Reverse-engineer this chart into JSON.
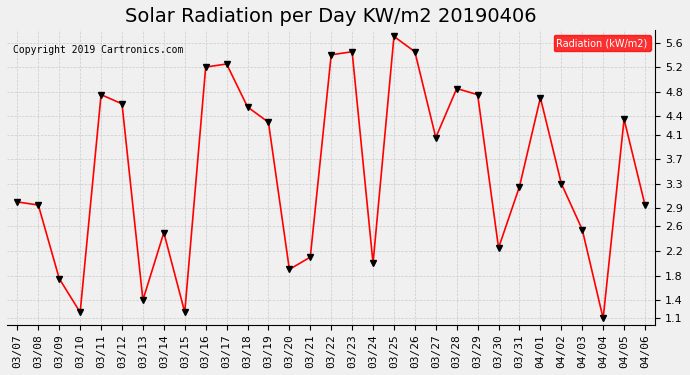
{
  "title": "Solar Radiation per Day KW/m2 20190406",
  "copyright": "Copyright 2019 Cartronics.com",
  "legend_label": "Radiation (kW/m2)",
  "dates": [
    "03/07",
    "03/08",
    "03/09",
    "03/10",
    "03/11",
    "03/12",
    "03/13",
    "03/14",
    "03/15",
    "03/16",
    "03/17",
    "03/18",
    "03/19",
    "03/20",
    "03/21",
    "03/22",
    "03/23",
    "03/24",
    "03/25",
    "03/26",
    "03/27",
    "03/28",
    "03/29",
    "03/30",
    "03/31",
    "04/01",
    "04/02",
    "04/03",
    "04/04",
    "04/05",
    "04/06"
  ],
  "values": [
    3.0,
    2.95,
    1.75,
    1.2,
    4.75,
    4.6,
    1.4,
    2.5,
    1.2,
    5.2,
    5.25,
    4.55,
    4.3,
    1.9,
    2.1,
    5.4,
    5.45,
    2.0,
    5.7,
    5.45,
    4.05,
    4.85,
    4.75,
    2.25,
    3.25,
    4.7,
    3.3,
    2.55,
    1.1,
    4.35,
    2.95
  ],
  "line_color": "red",
  "marker_color": "black",
  "marker": "v",
  "ylim": [
    1.0,
    5.8
  ],
  "yticks": [
    1.1,
    1.4,
    1.8,
    2.2,
    2.6,
    2.9,
    3.3,
    3.7,
    4.1,
    4.4,
    4.8,
    5.2,
    5.6
  ],
  "bg_color": "#f0f0f0",
  "grid_color": "#cccccc",
  "title_fontsize": 14,
  "label_fontsize": 8,
  "legend_bg": "red",
  "legend_text_color": "white"
}
